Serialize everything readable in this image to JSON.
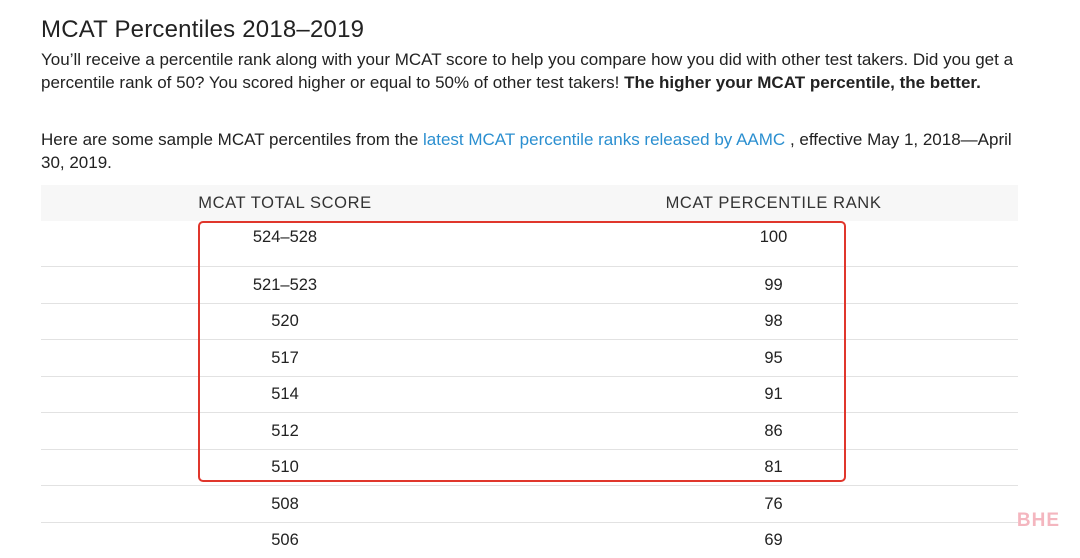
{
  "title": "MCAT Percentiles 2018–2019",
  "intro": {
    "text": "You’ll receive a percentile rank along with your MCAT score to help you compare how you did with other test takers. Did you get a percentile rank of 50? You scored higher or equal to 50% of other test takers! ",
    "bold": "The higher your MCAT percentile, the better."
  },
  "sample": {
    "before": "Here are some sample MCAT percentiles from the ",
    "link": "latest MCAT percentile ranks released by AAMC",
    "after": " , effective May 1, 2018—April 30, 2019."
  },
  "table": {
    "headers": [
      "MCAT TOTAL SCORE",
      "MCAT PERCENTILE RANK"
    ],
    "rows": [
      [
        "524–528",
        "100"
      ],
      [
        "521–523",
        "99"
      ],
      [
        "520",
        "98"
      ],
      [
        "517",
        "95"
      ],
      [
        "514",
        "91"
      ],
      [
        "512",
        "86"
      ],
      [
        "510",
        "81"
      ],
      [
        "508",
        "76"
      ],
      [
        "506",
        "69"
      ]
    ]
  },
  "highlight_color": "#e0362c",
  "link_color": "#2b8fd0",
  "watermark": "BHE"
}
